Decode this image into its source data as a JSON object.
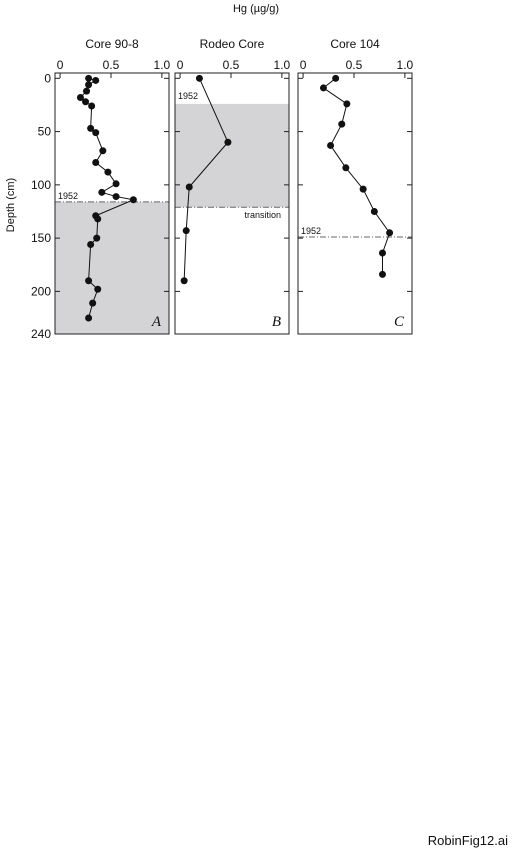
{
  "title": "Hg (µg/g)",
  "y_label": "Depth (cm)",
  "footer": "RobinFig12.ai",
  "chart_data": [
    {
      "type": "line",
      "title": "Core 90-8",
      "panel_label": "A",
      "xlim": [
        -0.05,
        1.07
      ],
      "xticks": [
        0,
        0.5,
        {
          "value": 1,
          "label": "1.0"
        }
      ],
      "ylim": [
        -5,
        240
      ],
      "yticks": [
        0,
        50,
        100,
        150,
        200,
        240
      ],
      "x": [
        0.28,
        0.35,
        0.28,
        0.26,
        0.2,
        0.25,
        0.31,
        0.3,
        0.35,
        0.42,
        0.35,
        0.47,
        0.55,
        0.41,
        0.55,
        0.72,
        0.35,
        0.37,
        0.36,
        0.3,
        0.28,
        0.37,
        0.32,
        0.28
      ],
      "y": [
        0,
        2,
        6,
        12,
        18,
        22,
        26,
        47,
        51,
        68,
        79,
        88,
        99,
        107,
        111,
        114,
        129,
        132,
        150,
        156,
        190,
        198,
        211,
        225
      ],
      "band": {
        "from": 116,
        "to": 240
      },
      "hline": {
        "value": 116,
        "label": "1952"
      }
    },
    {
      "type": "line",
      "title": "Rodeo Core",
      "panel_label": "B",
      "xlim": [
        -0.05,
        1.07
      ],
      "xticks": [
        0,
        0.5,
        {
          "value": 1,
          "label": "1.0"
        }
      ],
      "ylim": [
        -5,
        240
      ],
      "yticks": [
        0,
        50,
        100,
        150,
        200,
        240
      ],
      "x": [
        0.19,
        0.47,
        0.09,
        0.06,
        0.04
      ],
      "y": [
        0,
        60,
        102,
        143,
        190
      ],
      "band": {
        "from": 24,
        "to": 121,
        "label": "1952"
      },
      "hline": {
        "value": 121,
        "label": "transition"
      }
    },
    {
      "type": "line",
      "title": "Core 104",
      "panel_label": "C",
      "xlim": [
        -0.05,
        1.07
      ],
      "xticks": [
        0,
        0.5,
        {
          "value": 1,
          "label": "1.0"
        }
      ],
      "ylim": [
        -5,
        240
      ],
      "yticks": [
        0,
        50,
        100,
        150,
        200,
        240
      ],
      "x": [
        0.32,
        0.2,
        0.43,
        0.38,
        0.27,
        0.42,
        0.59,
        0.7,
        0.85,
        0.78,
        0.78
      ],
      "y": [
        0,
        9,
        24,
        43,
        63,
        84,
        104,
        125,
        145,
        164,
        184
      ],
      "hline": {
        "value": 149,
        "label": "1952"
      }
    }
  ]
}
